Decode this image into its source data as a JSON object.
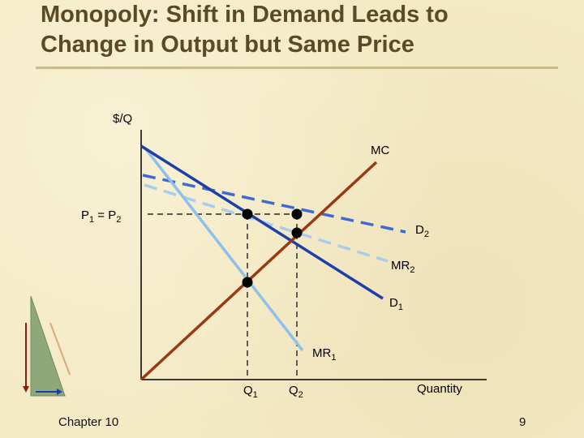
{
  "slide": {
    "title_line1": "Monopoly: Shift in Demand Leads to",
    "title_line2": "Change in Output but Same Price",
    "chapter": "Chapter 10",
    "page_number": "9"
  },
  "diagram": {
    "y_axis_label": "$/Q",
    "x_axis_label": "Quantity",
    "curves": {
      "mc": "MC",
      "d1": "D",
      "d1_sub": "1",
      "d2": "D",
      "d2_sub": "2",
      "mr1": "MR",
      "mr1_sub": "1",
      "mr2": "MR",
      "mr2_sub": "2"
    },
    "price_label": {
      "p1": "P",
      "p1_sub": "1",
      "equals": " = ",
      "p2": "P",
      "p2_sub": "2"
    },
    "quantities": {
      "q1": "Q",
      "q1_sub": "1",
      "q2": "Q",
      "q2_sub": "2"
    },
    "colors": {
      "mc": "#9a3a12",
      "d1": "#1f3fa8",
      "mr1": "#8fc0ea",
      "d2": "#3f6ad4",
      "mr2": "#a9cdee",
      "points": "#000000"
    }
  }
}
